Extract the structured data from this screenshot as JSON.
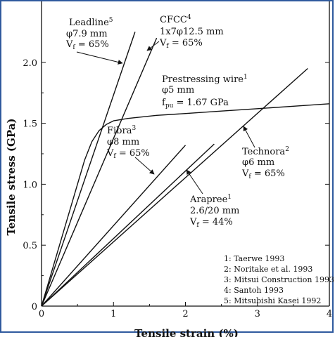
{
  "chart_data": {
    "type": "line",
    "xlabel": "Tensile strain (%)",
    "ylabel": "Tensile stress (GPa)",
    "xlim": [
      0,
      4
    ],
    "ylim": [
      0,
      2.5
    ],
    "xticks": [
      "0",
      "1",
      "2",
      "3",
      "4"
    ],
    "yticks": [
      "0",
      "0.5",
      "1.0",
      "1.5",
      "2.0"
    ],
    "grid": false,
    "series": [
      {
        "name": "Leadline",
        "sup": "5",
        "spec1": "φ7.9 mm",
        "spec2": "Vf = 65%",
        "x": [
          0,
          1.3
        ],
        "y": [
          0,
          2.25
        ]
      },
      {
        "name": "CFCC",
        "sup": "4",
        "spec1": "1x7φ12.5 mm",
        "spec2": "Vf = 65%",
        "x": [
          0,
          1.6
        ],
        "y": [
          0,
          2.2
        ]
      },
      {
        "name": "Prestressing wire",
        "sup": "1",
        "spec1": "φ5 mm",
        "spec2": "fpu = 1.67 GPa",
        "x": [
          0,
          0.45,
          0.6,
          0.7,
          0.8,
          0.9,
          1.0,
          1.2,
          1.6,
          2.0,
          2.5,
          3.0,
          3.5,
          4.0
        ],
        "y": [
          0,
          0.9,
          1.2,
          1.35,
          1.44,
          1.49,
          1.52,
          1.54,
          1.565,
          1.58,
          1.6,
          1.62,
          1.64,
          1.66
        ]
      },
      {
        "name": "Fibra",
        "sup": "3",
        "spec1": "φ8 mm",
        "spec2": "Vf = 65%",
        "x": [
          0,
          2.0
        ],
        "y": [
          0,
          1.32
        ]
      },
      {
        "name": "Technora",
        "sup": "2",
        "spec1": "φ6 mm",
        "spec2": "Vf = 65%",
        "x": [
          0,
          3.7
        ],
        "y": [
          0,
          1.95
        ]
      },
      {
        "name": "Arapree",
        "sup": "1",
        "spec1": "2.6/20 mm",
        "spec2": "Vf = 44%",
        "x": [
          0,
          2.4
        ],
        "y": [
          0,
          1.33
        ]
      }
    ],
    "references": [
      "1: Taerwe 1993",
      "2: Noritake et al. 1993",
      "3: Mitsui Construction 1993",
      "4: Santoh 1993",
      "5: Mitsubishi Kasei 1992"
    ]
  }
}
